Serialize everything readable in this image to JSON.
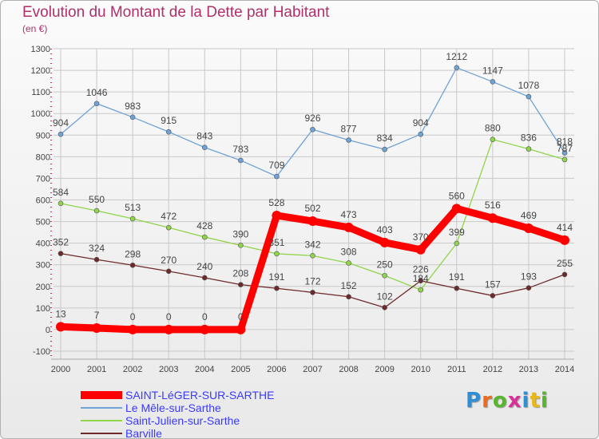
{
  "title": "Evolution du Montant de la Dette par Habitant",
  "unit_label": "(en €)",
  "logo_text": "Proxiti",
  "chart_data": {
    "type": "line",
    "title": "Evolution du Montant de la Dette par Habitant",
    "ylabel": "(en €)",
    "xlabel": "",
    "x": [
      "2000",
      "2001",
      "2002",
      "2003",
      "2004",
      "2005",
      "2006",
      "2007",
      "2008",
      "2009",
      "2010",
      "2011",
      "2012",
      "2013",
      "2014"
    ],
    "ylim": [
      -100,
      1300
    ],
    "yticks": [
      -100,
      0,
      100,
      200,
      300,
      400,
      500,
      600,
      700,
      800,
      900,
      1000,
      1100,
      1200,
      1300
    ],
    "grid": true,
    "legend": "bottom-left",
    "series": [
      {
        "name": "SAINT-LéGER-SUR-SARTHE",
        "color": "#ff0000",
        "emphasis": true,
        "values": [
          13,
          7,
          0,
          0,
          0,
          0,
          528,
          502,
          473,
          403,
          370,
          560,
          516,
          469,
          414
        ]
      },
      {
        "name": "Le Mêle-sur-Sarthe",
        "color": "#6fa2d6",
        "values": [
          904,
          1046,
          983,
          915,
          843,
          783,
          709,
          926,
          877,
          834,
          904,
          1212,
          1147,
          1078,
          818
        ]
      },
      {
        "name": "Saint-Julien-sur-Sarthe",
        "color": "#8fd44a",
        "values": [
          584,
          550,
          513,
          472,
          428,
          390,
          351,
          342,
          308,
          250,
          184,
          399,
          880,
          836,
          787
        ]
      },
      {
        "name": "Barville",
        "color": "#6e2a2a",
        "values": [
          352,
          324,
          298,
          270,
          240,
          208,
          191,
          172,
          152,
          102,
          226,
          191,
          157,
          193,
          255
        ]
      }
    ]
  }
}
